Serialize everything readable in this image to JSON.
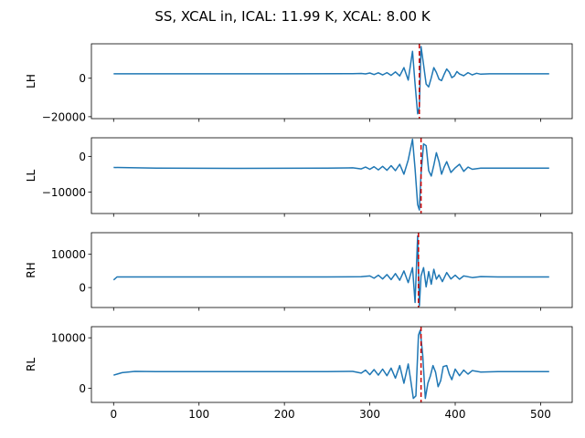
{
  "figure": {
    "title": "SS, XCAL in, ICAL: 11.99 K, XCAL: 8.00 K"
  },
  "colors": {
    "line": "#1f77b4",
    "marker": "#cc0000",
    "axes": "#000000"
  },
  "chart_data": [
    {
      "type": "line",
      "name": "LH",
      "ylabel": "LH",
      "xlim": [
        -26,
        537
      ],
      "ylim": [
        -21000,
        17900
      ],
      "xticks": [
        0,
        100,
        200,
        300,
        400,
        500
      ],
      "yticks": [
        -20000,
        0
      ],
      "ytick_labels": [
        "−20000",
        "0"
      ],
      "show_xtick_labels": false,
      "baseline": 2300,
      "marker_x": 358,
      "points": [
        [
          0,
          2300
        ],
        [
          100,
          2300
        ],
        [
          200,
          2300
        ],
        [
          280,
          2350
        ],
        [
          290,
          2500
        ],
        [
          295,
          2250
        ],
        [
          300,
          2700
        ],
        [
          305,
          1900
        ],
        [
          310,
          2800
        ],
        [
          315,
          1700
        ],
        [
          320,
          2900
        ],
        [
          325,
          1500
        ],
        [
          330,
          3300
        ],
        [
          335,
          1200
        ],
        [
          340,
          5500
        ],
        [
          345,
          -1000
        ],
        [
          350,
          14000
        ],
        [
          353,
          -3000
        ],
        [
          356,
          -18500
        ],
        [
          358,
          -15000
        ],
        [
          360,
          16500
        ],
        [
          363,
          7000
        ],
        [
          366,
          -3000
        ],
        [
          369,
          -4500
        ],
        [
          372,
          200
        ],
        [
          375,
          5500
        ],
        [
          378,
          3000
        ],
        [
          381,
          -500
        ],
        [
          384,
          -1200
        ],
        [
          387,
          2000
        ],
        [
          390,
          4800
        ],
        [
          393,
          3200
        ],
        [
          396,
          300
        ],
        [
          399,
          1200
        ],
        [
          402,
          3500
        ],
        [
          405,
          2200
        ],
        [
          410,
          1300
        ],
        [
          415,
          2900
        ],
        [
          420,
          1700
        ],
        [
          425,
          2600
        ],
        [
          430,
          2100
        ],
        [
          440,
          2300
        ],
        [
          460,
          2300
        ],
        [
          510,
          2300
        ]
      ]
    },
    {
      "type": "line",
      "name": "LL",
      "ylabel": "LL",
      "xlim": [
        -26,
        537
      ],
      "ylim": [
        -16000,
        5200
      ],
      "xticks": [
        0,
        100,
        200,
        300,
        400,
        500
      ],
      "yticks": [
        -10000,
        0
      ],
      "ytick_labels": [
        "−10000",
        "0"
      ],
      "show_xtick_labels": false,
      "baseline": -3300,
      "marker_x": 360,
      "points": [
        [
          0,
          -3100
        ],
        [
          50,
          -3300
        ],
        [
          150,
          -3350
        ],
        [
          250,
          -3300
        ],
        [
          280,
          -3200
        ],
        [
          290,
          -3500
        ],
        [
          295,
          -3000
        ],
        [
          300,
          -3600
        ],
        [
          305,
          -2900
        ],
        [
          310,
          -3800
        ],
        [
          315,
          -2800
        ],
        [
          320,
          -3900
        ],
        [
          325,
          -2600
        ],
        [
          330,
          -4000
        ],
        [
          335,
          -2200
        ],
        [
          340,
          -5000
        ],
        [
          345,
          -1000
        ],
        [
          350,
          4800
        ],
        [
          353,
          -3500
        ],
        [
          356,
          -13500
        ],
        [
          358,
          -15000
        ],
        [
          360,
          -5000
        ],
        [
          363,
          3500
        ],
        [
          366,
          3000
        ],
        [
          369,
          -4000
        ],
        [
          372,
          -5500
        ],
        [
          375,
          -2500
        ],
        [
          378,
          1000
        ],
        [
          381,
          -1500
        ],
        [
          384,
          -5000
        ],
        [
          387,
          -3000
        ],
        [
          390,
          -1500
        ],
        [
          395,
          -4500
        ],
        [
          400,
          -3200
        ],
        [
          405,
          -2200
        ],
        [
          410,
          -4200
        ],
        [
          415,
          -3000
        ],
        [
          420,
          -3600
        ],
        [
          430,
          -3300
        ],
        [
          450,
          -3300
        ],
        [
          510,
          -3300
        ]
      ]
    },
    {
      "type": "line",
      "name": "RH",
      "ylabel": "RH",
      "xlim": [
        -26,
        537
      ],
      "ylim": [
        -6000,
        16500
      ],
      "xticks": [
        0,
        100,
        200,
        300,
        400,
        500
      ],
      "yticks": [
        0,
        10000
      ],
      "ytick_labels": [
        "0",
        "10000"
      ],
      "show_xtick_labels": false,
      "baseline": 3200,
      "marker_x": 357,
      "points": [
        [
          0,
          2300
        ],
        [
          4,
          3200
        ],
        [
          100,
          3200
        ],
        [
          250,
          3200
        ],
        [
          290,
          3250
        ],
        [
          300,
          3500
        ],
        [
          305,
          2800
        ],
        [
          310,
          3700
        ],
        [
          315,
          2600
        ],
        [
          320,
          3900
        ],
        [
          325,
          2400
        ],
        [
          330,
          4200
        ],
        [
          335,
          2200
        ],
        [
          340,
          5000
        ],
        [
          345,
          1500
        ],
        [
          350,
          6000
        ],
        [
          353,
          -4500
        ],
        [
          356,
          15500
        ],
        [
          358,
          -5500
        ],
        [
          360,
          3500
        ],
        [
          363,
          6000
        ],
        [
          366,
          200
        ],
        [
          369,
          4800
        ],
        [
          372,
          1000
        ],
        [
          375,
          5500
        ],
        [
          378,
          2500
        ],
        [
          381,
          3800
        ],
        [
          385,
          1800
        ],
        [
          390,
          4500
        ],
        [
          395,
          2600
        ],
        [
          400,
          3700
        ],
        [
          405,
          2500
        ],
        [
          410,
          3500
        ],
        [
          420,
          3000
        ],
        [
          430,
          3300
        ],
        [
          450,
          3200
        ],
        [
          510,
          3200
        ]
      ]
    },
    {
      "type": "line",
      "name": "RL",
      "ylabel": "RL",
      "xlim": [
        -26,
        537
      ],
      "ylim": [
        -2800,
        12200
      ],
      "xticks": [
        0,
        100,
        200,
        300,
        400,
        500
      ],
      "yticks": [
        0,
        10000
      ],
      "ytick_labels": [
        "0",
        "10000"
      ],
      "show_xtick_labels": false,
      "show_xtick_labels_bottom": true,
      "xtick_labels": [
        "0",
        "100",
        "200",
        "300",
        "400",
        "500"
      ],
      "baseline": 3300,
      "marker_x": 360,
      "points": [
        [
          0,
          2600
        ],
        [
          10,
          3100
        ],
        [
          25,
          3350
        ],
        [
          50,
          3300
        ],
        [
          150,
          3300
        ],
        [
          250,
          3300
        ],
        [
          280,
          3350
        ],
        [
          290,
          3000
        ],
        [
          295,
          3600
        ],
        [
          300,
          2700
        ],
        [
          305,
          3700
        ],
        [
          310,
          2600
        ],
        [
          315,
          3800
        ],
        [
          320,
          2500
        ],
        [
          325,
          4000
        ],
        [
          330,
          2000
        ],
        [
          335,
          4500
        ],
        [
          340,
          1000
        ],
        [
          345,
          4800
        ],
        [
          348,
          1500
        ],
        [
          351,
          -2000
        ],
        [
          354,
          -1500
        ],
        [
          357,
          10500
        ],
        [
          359,
          11500
        ],
        [
          362,
          6500
        ],
        [
          365,
          -2000
        ],
        [
          368,
          1000
        ],
        [
          371,
          2500
        ],
        [
          374,
          4500
        ],
        [
          377,
          3200
        ],
        [
          380,
          300
        ],
        [
          383,
          1500
        ],
        [
          386,
          4300
        ],
        [
          390,
          4500
        ],
        [
          393,
          2800
        ],
        [
          396,
          1700
        ],
        [
          400,
          3800
        ],
        [
          405,
          2500
        ],
        [
          410,
          3600
        ],
        [
          415,
          2800
        ],
        [
          420,
          3500
        ],
        [
          430,
          3200
        ],
        [
          450,
          3300
        ],
        [
          510,
          3300
        ]
      ]
    }
  ]
}
